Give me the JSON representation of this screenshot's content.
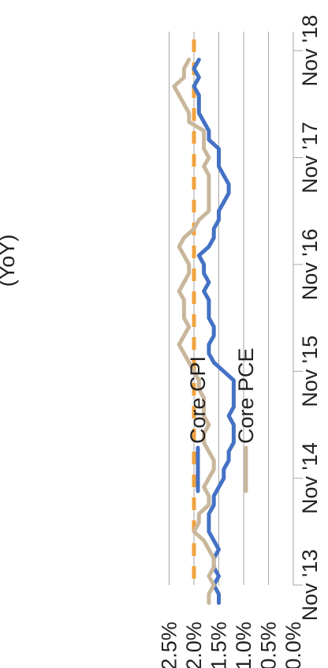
{
  "chart_data": {
    "type": "line",
    "title": "(YoY)",
    "orientation": "rotated-90-clockwise",
    "grid": true,
    "legend_position": "inside-bottom",
    "ylim": [
      0,
      2.5
    ],
    "y_ticks": [
      "0.0%",
      "0.5%",
      "1.0%",
      "1.5%",
      "2.0%",
      "2.5%"
    ],
    "x_ticks": [
      "Nov '13",
      "Nov '14",
      "Nov '15",
      "Nov '16",
      "Nov '17",
      "Nov '18"
    ],
    "colors": {
      "core_cpi": "#4472c4",
      "core_pce": "#c9b79c",
      "target": "#f0a340",
      "grid": "#a6a6a6"
    },
    "target_line": {
      "value": 2.0,
      "style": "dashed"
    },
    "series": [
      {
        "name": "Core CPI",
        "x": [
          "2013-09",
          "2013-10",
          "2013-11",
          "2013-12",
          "2014-01",
          "2014-02",
          "2014-03",
          "2014-04",
          "2014-05",
          "2014-06",
          "2014-07",
          "2014-08",
          "2014-09",
          "2014-10",
          "2014-11",
          "2014-12",
          "2015-01",
          "2015-02",
          "2015-03",
          "2015-04",
          "2015-05",
          "2015-06",
          "2015-07",
          "2015-08",
          "2015-09",
          "2015-10",
          "2015-11",
          "2015-12",
          "2016-01",
          "2016-02",
          "2016-03",
          "2016-04",
          "2016-05",
          "2016-06",
          "2016-07",
          "2016-08",
          "2016-09",
          "2016-10",
          "2016-11",
          "2016-12",
          "2017-01",
          "2017-02",
          "2017-03",
          "2017-04",
          "2017-05",
          "2017-06",
          "2017-07",
          "2017-08",
          "2017-09",
          "2017-10",
          "2017-11",
          "2017-12",
          "2018-01",
          "2018-02",
          "2018-03",
          "2018-04",
          "2018-05",
          "2018-06",
          "2018-07",
          "2018-08",
          "2018-09",
          "2018-10"
        ],
        "values": [
          1.7,
          1.7,
          1.6,
          1.7,
          1.6,
          1.6,
          1.7,
          1.8,
          2.0,
          1.9,
          1.9,
          1.7,
          1.7,
          1.8,
          1.7,
          1.6,
          1.6,
          1.7,
          1.8,
          1.8,
          1.7,
          1.8,
          1.8,
          1.8,
          1.9,
          1.9,
          2.0,
          2.1,
          2.2,
          2.3,
          2.2,
          2.1,
          2.2,
          2.2,
          2.2,
          2.3,
          2.2,
          2.1,
          2.1,
          2.2,
          2.3,
          2.2,
          2.0,
          1.9,
          1.7,
          1.7,
          1.7,
          1.7,
          1.7,
          1.8,
          1.7,
          1.8,
          1.8,
          1.8,
          2.1,
          2.1,
          2.2,
          2.3,
          2.4,
          2.2,
          2.2,
          2.1
        ]
      },
      {
        "name": "Core PCE",
        "x": [
          "2013-09",
          "2013-10",
          "2013-11",
          "2013-12",
          "2014-01",
          "2014-02",
          "2014-03",
          "2014-04",
          "2014-05",
          "2014-06",
          "2014-07",
          "2014-08",
          "2014-09",
          "2014-10",
          "2014-11",
          "2014-12",
          "2015-01",
          "2015-02",
          "2015-03",
          "2015-04",
          "2015-05",
          "2015-06",
          "2015-07",
          "2015-08",
          "2015-09",
          "2015-10",
          "2015-11",
          "2015-12",
          "2016-01",
          "2016-02",
          "2016-03",
          "2016-04",
          "2016-05",
          "2016-06",
          "2016-07",
          "2016-08",
          "2016-09",
          "2016-10",
          "2016-11",
          "2016-12",
          "2017-01",
          "2017-02",
          "2017-03",
          "2017-04",
          "2017-05",
          "2017-06",
          "2017-07",
          "2017-08",
          "2017-09",
          "2017-10",
          "2017-11",
          "2017-12",
          "2018-01",
          "2018-02",
          "2018-03",
          "2018-04",
          "2018-05",
          "2018-06",
          "2018-07",
          "2018-08",
          "2018-09",
          "2018-10"
        ],
        "values": [
          1.5,
          1.5,
          1.6,
          1.5,
          1.6,
          1.6,
          1.5,
          1.6,
          1.7,
          1.7,
          1.7,
          1.6,
          1.6,
          1.5,
          1.4,
          1.4,
          1.3,
          1.3,
          1.2,
          1.2,
          1.2,
          1.3,
          1.2,
          1.2,
          1.2,
          1.2,
          1.4,
          1.6,
          1.7,
          1.7,
          1.6,
          1.6,
          1.7,
          1.7,
          1.7,
          1.8,
          1.7,
          1.8,
          1.8,
          1.9,
          1.7,
          1.6,
          1.6,
          1.5,
          1.5,
          1.4,
          1.3,
          1.3,
          1.4,
          1.5,
          1.5,
          1.5,
          1.7,
          1.7,
          1.8,
          1.9,
          1.9,
          1.9,
          2.0,
          1.9,
          2.0,
          1.9
        ]
      }
    ]
  }
}
